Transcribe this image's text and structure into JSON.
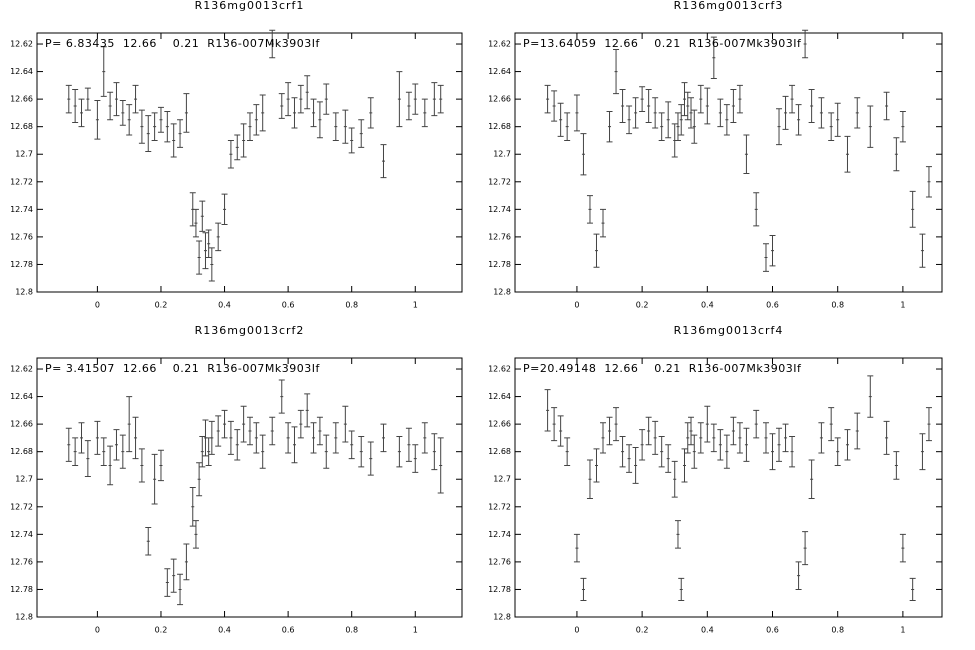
{
  "chart_data": [
    {
      "type": "errorbar",
      "title": "R136mg0013crf1",
      "annotation": "P= 6.83435  12.66    0.21  R136-007Mk3903If",
      "color": "#444444",
      "y_inverted": true,
      "xlim": [
        -0.19,
        1.147
      ],
      "ylim": [
        12.612,
        12.8
      ],
      "xticks": [
        0,
        0.2,
        0.4,
        0.6,
        0.8,
        1
      ],
      "yticks": [
        12.62,
        12.64,
        12.66,
        12.68,
        12.7,
        12.72,
        12.74,
        12.76,
        12.78,
        12.8
      ],
      "x": [
        -0.09,
        -0.07,
        -0.05,
        -0.03,
        0.0,
        0.02,
        0.04,
        0.06,
        0.08,
        0.1,
        0.12,
        0.14,
        0.16,
        0.18,
        0.2,
        0.22,
        0.24,
        0.26,
        0.28,
        0.3,
        0.31,
        0.32,
        0.33,
        0.34,
        0.35,
        0.36,
        0.38,
        0.4,
        0.42,
        0.44,
        0.46,
        0.48,
        0.5,
        0.52,
        0.55,
        0.58,
        0.6,
        0.62,
        0.64,
        0.66,
        0.68,
        0.7,
        0.72,
        0.75,
        0.78,
        0.8,
        0.83,
        0.86,
        0.9,
        0.95,
        0.98,
        1.0,
        1.03,
        1.06,
        1.08
      ],
      "values": [
        12.66,
        12.665,
        12.67,
        12.66,
        12.675,
        12.64,
        12.665,
        12.66,
        12.67,
        12.675,
        12.66,
        12.68,
        12.685,
        12.68,
        12.675,
        12.68,
        12.69,
        12.685,
        12.67,
        12.74,
        12.75,
        12.775,
        12.745,
        12.77,
        12.765,
        12.78,
        12.76,
        12.74,
        12.7,
        12.695,
        12.69,
        12.68,
        12.675,
        12.67,
        12.62,
        12.665,
        12.66,
        12.67,
        12.66,
        12.655,
        12.67,
        12.675,
        12.66,
        12.68,
        12.68,
        12.69,
        12.685,
        12.67,
        12.705,
        12.66,
        12.665,
        12.66,
        12.67,
        12.66,
        12.66
      ],
      "errors": [
        0.01,
        0.012,
        0.01,
        0.008,
        0.014,
        0.018,
        0.01,
        0.012,
        0.009,
        0.011,
        0.01,
        0.012,
        0.013,
        0.01,
        0.009,
        0.011,
        0.012,
        0.01,
        0.014,
        0.012,
        0.01,
        0.012,
        0.011,
        0.013,
        0.01,
        0.012,
        0.01,
        0.011,
        0.01,
        0.009,
        0.012,
        0.01,
        0.011,
        0.013,
        0.01,
        0.009,
        0.012,
        0.011,
        0.01,
        0.012,
        0.01,
        0.013,
        0.011,
        0.01,
        0.012,
        0.009,
        0.01,
        0.011,
        0.012,
        0.02,
        0.01,
        0.011,
        0.01,
        0.012,
        0.01
      ]
    },
    {
      "type": "errorbar",
      "title": "R136mg0013crf3",
      "annotation": "P=13.64059  12.66    0.21  R136-007Mk3903If",
      "color": "#444444",
      "y_inverted": true,
      "xlim": [
        -0.19,
        1.12
      ],
      "ylim": [
        12.612,
        12.8
      ],
      "xticks": [
        0,
        0.2,
        0.4,
        0.6,
        0.8,
        1
      ],
      "yticks": [
        12.62,
        12.64,
        12.66,
        12.68,
        12.7,
        12.72,
        12.74,
        12.76,
        12.78,
        12.8
      ],
      "x": [
        -0.09,
        -0.07,
        -0.05,
        -0.03,
        0.0,
        0.02,
        0.04,
        0.06,
        0.08,
        0.1,
        0.12,
        0.14,
        0.16,
        0.18,
        0.2,
        0.22,
        0.24,
        0.26,
        0.28,
        0.3,
        0.31,
        0.32,
        0.33,
        0.34,
        0.35,
        0.36,
        0.38,
        0.4,
        0.42,
        0.44,
        0.46,
        0.48,
        0.5,
        0.52,
        0.55,
        0.58,
        0.6,
        0.62,
        0.64,
        0.66,
        0.68,
        0.7,
        0.72,
        0.75,
        0.78,
        0.8,
        0.83,
        0.86,
        0.9,
        0.95,
        0.98,
        1.0,
        1.03,
        1.06,
        1.08
      ],
      "values": [
        12.66,
        12.665,
        12.675,
        12.68,
        12.67,
        12.7,
        12.74,
        12.77,
        12.75,
        12.68,
        12.64,
        12.665,
        12.675,
        12.67,
        12.66,
        12.665,
        12.67,
        12.68,
        12.675,
        12.69,
        12.68,
        12.675,
        12.66,
        12.665,
        12.67,
        12.68,
        12.66,
        12.665,
        12.63,
        12.67,
        12.675,
        12.665,
        12.66,
        12.7,
        12.74,
        12.775,
        12.77,
        12.68,
        12.67,
        12.66,
        12.675,
        12.62,
        12.665,
        12.67,
        12.68,
        12.675,
        12.7,
        12.67,
        12.68,
        12.665,
        12.7,
        12.68,
        12.74,
        12.77,
        12.72
      ],
      "errors": [
        0.01,
        0.011,
        0.012,
        0.01,
        0.013,
        0.015,
        0.01,
        0.012,
        0.01,
        0.011,
        0.016,
        0.012,
        0.01,
        0.011,
        0.009,
        0.012,
        0.011,
        0.01,
        0.013,
        0.012,
        0.01,
        0.011,
        0.012,
        0.01,
        0.011,
        0.012,
        0.01,
        0.013,
        0.015,
        0.01,
        0.011,
        0.012,
        0.01,
        0.014,
        0.012,
        0.01,
        0.011,
        0.013,
        0.012,
        0.01,
        0.011,
        0.01,
        0.012,
        0.011,
        0.01,
        0.012,
        0.013,
        0.011,
        0.015,
        0.01,
        0.012,
        0.011,
        0.013,
        0.012,
        0.011
      ]
    },
    {
      "type": "errorbar",
      "title": "R136mg0013crf2",
      "annotation": "P= 3.41507  12.66    0.21  R136-007Mk3903If",
      "color": "#444444",
      "y_inverted": true,
      "xlim": [
        -0.19,
        1.147
      ],
      "ylim": [
        12.612,
        12.8
      ],
      "xticks": [
        0,
        0.2,
        0.4,
        0.6,
        0.8,
        1
      ],
      "yticks": [
        12.62,
        12.64,
        12.66,
        12.68,
        12.7,
        12.72,
        12.74,
        12.76,
        12.78,
        12.8
      ],
      "x": [
        -0.09,
        -0.07,
        -0.05,
        -0.03,
        0.0,
        0.02,
        0.04,
        0.06,
        0.08,
        0.1,
        0.12,
        0.14,
        0.16,
        0.18,
        0.2,
        0.22,
        0.24,
        0.26,
        0.28,
        0.3,
        0.31,
        0.32,
        0.33,
        0.34,
        0.35,
        0.36,
        0.38,
        0.4,
        0.42,
        0.44,
        0.46,
        0.48,
        0.5,
        0.52,
        0.55,
        0.58,
        0.6,
        0.62,
        0.64,
        0.66,
        0.68,
        0.7,
        0.72,
        0.75,
        0.78,
        0.8,
        0.83,
        0.86,
        0.9,
        0.95,
        0.98,
        1.0,
        1.03,
        1.06,
        1.08
      ],
      "values": [
        12.675,
        12.68,
        12.67,
        12.685,
        12.67,
        12.68,
        12.69,
        12.675,
        12.68,
        12.66,
        12.67,
        12.69,
        12.745,
        12.7,
        12.69,
        12.775,
        12.77,
        12.78,
        12.76,
        12.72,
        12.74,
        12.7,
        12.68,
        12.67,
        12.68,
        12.67,
        12.665,
        12.66,
        12.67,
        12.675,
        12.66,
        12.665,
        12.67,
        12.68,
        12.665,
        12.64,
        12.67,
        12.675,
        12.66,
        12.65,
        12.67,
        12.665,
        12.68,
        12.67,
        12.66,
        12.675,
        12.68,
        12.685,
        12.67,
        12.68,
        12.675,
        12.685,
        12.67,
        12.68,
        12.69
      ],
      "errors": [
        0.012,
        0.01,
        0.011,
        0.013,
        0.012,
        0.01,
        0.014,
        0.011,
        0.012,
        0.02,
        0.015,
        0.012,
        0.01,
        0.018,
        0.011,
        0.01,
        0.012,
        0.011,
        0.013,
        0.014,
        0.01,
        0.012,
        0.011,
        0.013,
        0.01,
        0.012,
        0.011,
        0.01,
        0.012,
        0.011,
        0.013,
        0.01,
        0.011,
        0.012,
        0.01,
        0.012,
        0.011,
        0.013,
        0.01,
        0.012,
        0.011,
        0.01,
        0.012,
        0.011,
        0.013,
        0.01,
        0.011,
        0.012,
        0.01,
        0.011,
        0.012,
        0.01,
        0.011,
        0.013,
        0.02
      ]
    },
    {
      "type": "errorbar",
      "title": "R136mg0013crf4",
      "annotation": "P=20.49148  12.66    0.21  R136-007Mk3903If",
      "color": "#444444",
      "y_inverted": true,
      "xlim": [
        -0.19,
        1.12
      ],
      "ylim": [
        12.612,
        12.8
      ],
      "xticks": [
        0,
        0.2,
        0.4,
        0.6,
        0.8,
        1
      ],
      "yticks": [
        12.62,
        12.64,
        12.66,
        12.68,
        12.7,
        12.72,
        12.74,
        12.76,
        12.78,
        12.8
      ],
      "x": [
        -0.09,
        -0.07,
        -0.05,
        -0.03,
        0.0,
        0.02,
        0.04,
        0.06,
        0.08,
        0.1,
        0.12,
        0.14,
        0.16,
        0.18,
        0.2,
        0.22,
        0.24,
        0.26,
        0.28,
        0.3,
        0.31,
        0.32,
        0.33,
        0.34,
        0.35,
        0.36,
        0.38,
        0.4,
        0.42,
        0.44,
        0.46,
        0.48,
        0.5,
        0.52,
        0.55,
        0.58,
        0.6,
        0.62,
        0.64,
        0.66,
        0.68,
        0.7,
        0.72,
        0.75,
        0.78,
        0.8,
        0.83,
        0.86,
        0.9,
        0.95,
        0.98,
        1.0,
        1.03,
        1.06,
        1.08
      ],
      "values": [
        12.65,
        12.66,
        12.665,
        12.68,
        12.75,
        12.78,
        12.7,
        12.69,
        12.67,
        12.665,
        12.66,
        12.68,
        12.685,
        12.69,
        12.675,
        12.665,
        12.67,
        12.68,
        12.685,
        12.7,
        12.74,
        12.78,
        12.69,
        12.67,
        12.665,
        12.68,
        12.67,
        12.66,
        12.67,
        12.675,
        12.68,
        12.665,
        12.67,
        12.675,
        12.66,
        12.67,
        12.68,
        12.675,
        12.67,
        12.68,
        12.77,
        12.75,
        12.7,
        12.67,
        12.66,
        12.68,
        12.675,
        12.665,
        12.64,
        12.67,
        12.69,
        12.75,
        12.78,
        12.68,
        12.66
      ],
      "errors": [
        0.015,
        0.012,
        0.011,
        0.01,
        0.01,
        0.008,
        0.014,
        0.012,
        0.011,
        0.01,
        0.012,
        0.011,
        0.01,
        0.013,
        0.011,
        0.01,
        0.012,
        0.011,
        0.01,
        0.013,
        0.01,
        0.008,
        0.012,
        0.011,
        0.01,
        0.012,
        0.011,
        0.013,
        0.01,
        0.011,
        0.012,
        0.01,
        0.011,
        0.012,
        0.01,
        0.011,
        0.013,
        0.012,
        0.01,
        0.011,
        0.01,
        0.012,
        0.014,
        0.011,
        0.012,
        0.01,
        0.011,
        0.013,
        0.015,
        0.012,
        0.01,
        0.01,
        0.008,
        0.013,
        0.012
      ]
    }
  ]
}
